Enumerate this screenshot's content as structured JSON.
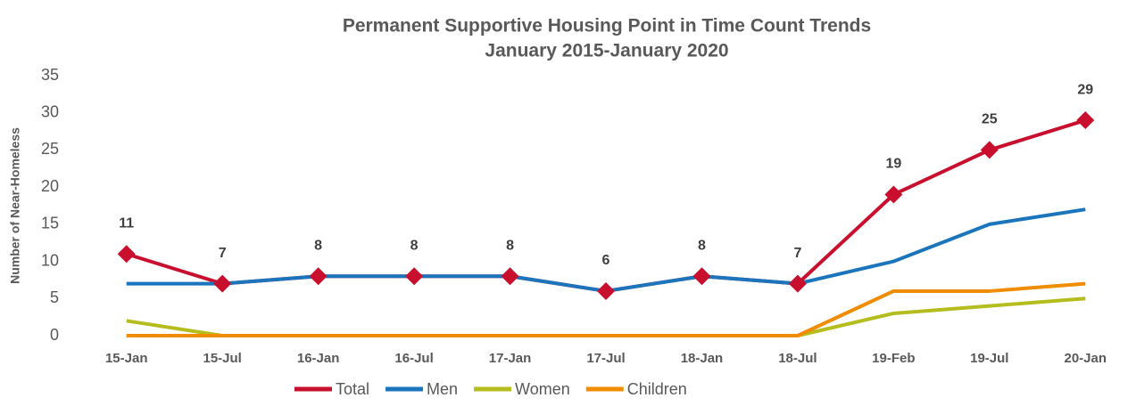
{
  "chart_data": {
    "type": "line",
    "title": "Permanent Supportive Housing Point in Time Count Trends",
    "subtitle": "January 2015-January 2020",
    "y_label": "Number of Near-Homeless",
    "categories": [
      "15-Jan",
      "15-Jul",
      "16-Jan",
      "16-Jul",
      "17-Jan",
      "17-Jul",
      "18-Jan",
      "18-Jul",
      "19-Feb",
      "19-Jul",
      "20-Jan"
    ],
    "series": [
      {
        "name": "Total",
        "color": "#c8102e",
        "values": [
          11,
          7,
          8,
          8,
          8,
          6,
          8,
          7,
          19,
          25,
          29
        ],
        "markers": true,
        "data_labels": true
      },
      {
        "name": "Men",
        "color": "#1a75bc",
        "values": [
          7,
          7,
          8,
          8,
          8,
          6,
          8,
          7,
          10,
          15,
          17
        ]
      },
      {
        "name": "Women",
        "color": "#b5bd1e",
        "values": [
          2,
          0,
          0,
          0,
          0,
          0,
          0,
          0,
          3,
          4,
          5
        ]
      },
      {
        "name": "Children",
        "color": "#f08c00",
        "values": [
          0,
          0,
          0,
          0,
          0,
          0,
          0,
          0,
          6,
          6,
          7
        ]
      }
    ],
    "ylim": [
      0,
      35
    ],
    "yticks": [
      0,
      5,
      10,
      15,
      20,
      25,
      30,
      35
    ],
    "grid": false,
    "legend": "bottom"
  }
}
